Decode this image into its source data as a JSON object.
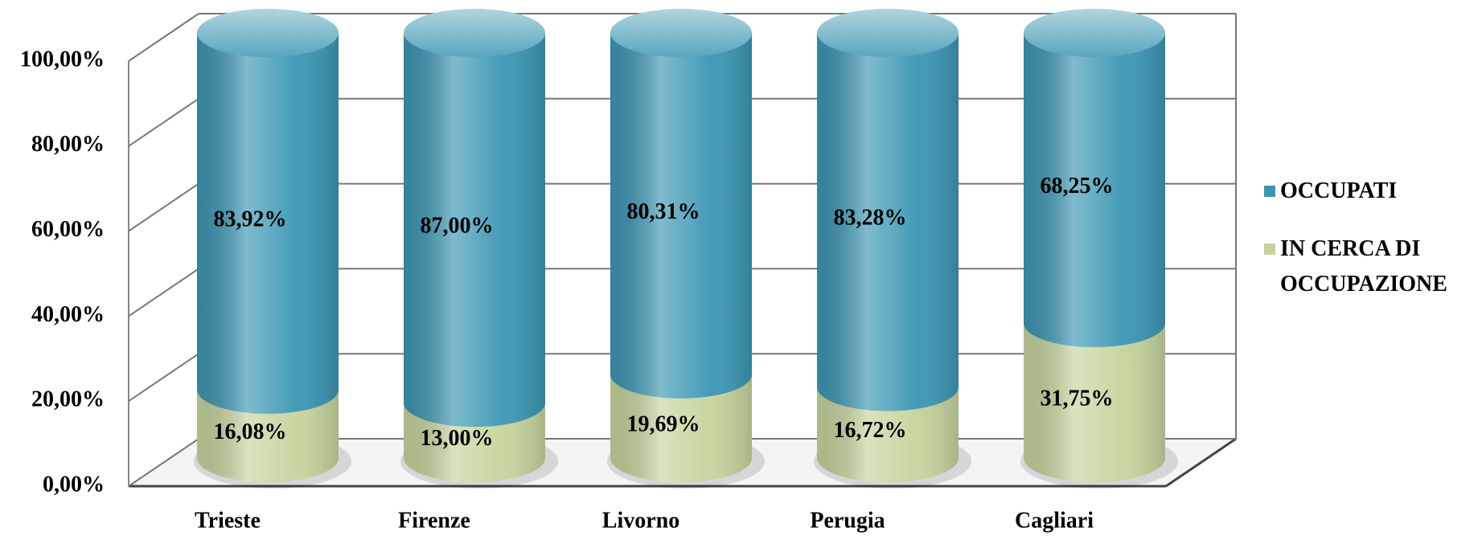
{
  "chart_data": {
    "type": "stacked-cylinder",
    "categories": [
      "Trieste",
      "Firenze",
      "Livorno",
      "Perugia",
      "Cagliari"
    ],
    "series": [
      {
        "name": "IN CERCA DI OCCUPAZIONE",
        "color": "#c5d39c",
        "values": [
          16.08,
          13.0,
          19.69,
          16.72,
          31.75
        ],
        "value_labels": [
          "16,08%",
          "13,00%",
          "19,69%",
          "16,72%",
          "31,75%"
        ]
      },
      {
        "name": "OCCUPATI",
        "color": "#3b96b3",
        "values": [
          83.92,
          87.0,
          80.31,
          83.28,
          68.25
        ],
        "value_labels": [
          "83,92%",
          "87,00%",
          "80,31%",
          "83,28%",
          "68,25%"
        ]
      }
    ],
    "ylim": [
      0,
      100
    ],
    "yticks": [
      {
        "value": 0,
        "label": "0,00%"
      },
      {
        "value": 20,
        "label": "20,00%"
      },
      {
        "value": 40,
        "label": "40,00%"
      },
      {
        "value": 60,
        "label": "60,00%"
      },
      {
        "value": 80,
        "label": "80,00%"
      },
      {
        "value": 100,
        "label": "100,00%"
      }
    ],
    "grid": true
  }
}
